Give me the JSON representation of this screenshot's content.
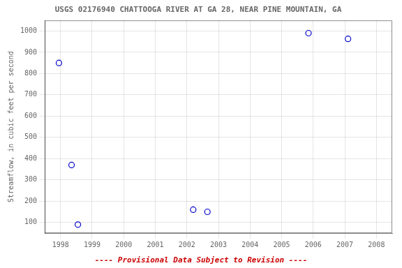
{
  "chart_data": {
    "type": "scatter",
    "title": "USGS 02176940 CHATTOOGA RIVER AT GA 28, NEAR PINE MOUNTAIN, GA",
    "ylabel": "Streamflow, in cubic feet per second",
    "x": [
      1997.95,
      1998.35,
      1998.55,
      2002.2,
      2002.65,
      2005.85,
      2007.1
    ],
    "values": [
      850,
      370,
      90,
      160,
      150,
      990,
      963
    ],
    "color": "#0000CC",
    "marker": "o",
    "xlim": [
      1997.5,
      2008.5
    ],
    "ylim": [
      50,
      1050
    ],
    "xticks": [
      1998,
      1999,
      2000,
      2001,
      2002,
      2003,
      2004,
      2005,
      2006,
      2007,
      2008
    ],
    "yticks": [
      100,
      200,
      300,
      400,
      500,
      600,
      700,
      800,
      900,
      1000
    ],
    "grid": true,
    "annotations": [
      {
        "text": "---- Provisional Data Subject to Revision ----",
        "color": "#CC0000"
      }
    ]
  }
}
